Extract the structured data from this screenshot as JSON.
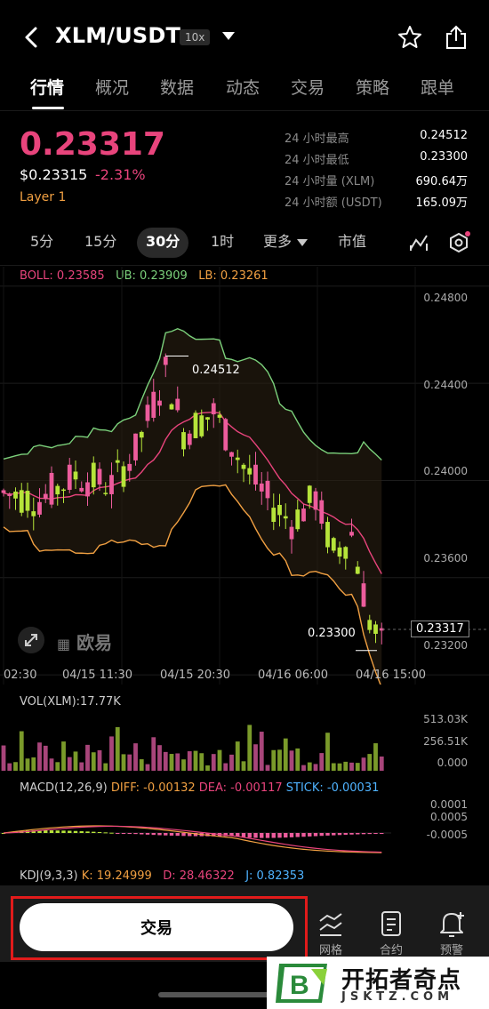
{
  "header": {
    "pair": "XLM/USDT",
    "leverage": "10x"
  },
  "tabs": [
    "行情",
    "概况",
    "数据",
    "动态",
    "交易",
    "策略",
    "跟单"
  ],
  "ticker": {
    "last_price": "0.23317",
    "usd_price": "$0.23315",
    "change": "-2.31%",
    "tag": "Layer 1",
    "stats": [
      {
        "label": "24 小时最高",
        "value": "0.24512"
      },
      {
        "label": "24 小时最低",
        "value": "0.23300"
      },
      {
        "label": "24 小时量 (XLM)",
        "value": "690.64万"
      },
      {
        "label": "24 小时额 (USDT)",
        "value": "165.09万"
      }
    ]
  },
  "intervals": {
    "items": [
      "5分",
      "15分",
      "30分",
      "1时"
    ],
    "selected": "30分",
    "more": "更多",
    "market_cap": "市值"
  },
  "indicators": {
    "boll_label": "BOLL: 0.23585",
    "ub_label": "UB: 0.23909",
    "lb_label": "LB: 0.23261",
    "vol_label": "VOL(XLM):17.77K",
    "macd_label": "MACD(12,26,9)",
    "diff_label": "DIFF: -0.00132",
    "dea_label": "DEA: -0.00117",
    "stick_label": "STICK: -0.00031",
    "kdj_label": "KDJ(9,3,3)",
    "k_label": "K: 19.24999",
    "d_label": "D: 28.46322",
    "j_label": "J: 0.82353"
  },
  "chart_data": {
    "type": "candlestick",
    "y_ticks": [
      "0.24800",
      "0.24400",
      "0.24000",
      "0.23600",
      "0.23200"
    ],
    "ylim": [
      0.2316,
      0.2488
    ],
    "x_ticks": [
      "02:30",
      "04/15 11:30",
      "04/15 20:30",
      "04/16 06:00",
      "04/16 15:00"
    ],
    "high_marker": "0.24512",
    "low_marker": "0.23300",
    "current_price": "0.23317",
    "volume_ticks": [
      "513.03K",
      "256.51K",
      "0.000"
    ],
    "macd_ticks": [
      "0.0001",
      "0.0005",
      "-0.0005"
    ],
    "colors": {
      "up": "#b6e43a",
      "down": "#ec5c9c",
      "ub": "#7bd07b",
      "mb": "#e8447c",
      "lb": "#f1a042"
    }
  },
  "watermark": {
    "logo_text": "欧易",
    "site_cn": "开拓者奇点",
    "site_en": "JSKTZ.COM"
  },
  "bottom": {
    "trade_label": "交易",
    "grid_label": "网格",
    "contract_label": "合约",
    "alert_label": "预警"
  }
}
